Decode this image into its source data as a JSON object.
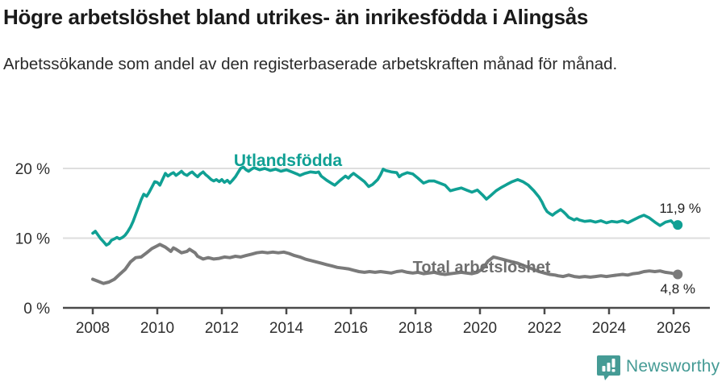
{
  "header": {
    "title": "Högre arbetslöshet bland utrikes- än inrikesfödda i Alingsås",
    "subtitle": "Arbetssökande som andel av den registerbaserade arbetskraften månad för månad."
  },
  "footer": {
    "brand": "Newsworthy",
    "brand_color": "#459b95",
    "icon": "bar-chart-speech-bubble-icon"
  },
  "chart_data": {
    "type": "line",
    "title": "Högre arbetslöshet bland utrikes- än inrikesfödda i Alingsås",
    "xlabel": "",
    "ylabel": "",
    "grid": "horizontal",
    "x_axis": {
      "ticks": [
        2008,
        2010,
        2012,
        2014,
        2016,
        2018,
        2020,
        2022,
        2024,
        2026
      ],
      "range": [
        2007.1,
        2027.1
      ]
    },
    "y_axis": {
      "ticks": [
        {
          "value": 0,
          "label": "0 %"
        },
        {
          "value": 10,
          "label": "10 %"
        },
        {
          "value": 20,
          "label": "20 %"
        }
      ],
      "range": [
        0,
        22
      ]
    },
    "series": [
      {
        "name": "Utlandsfödda",
        "color": "#10a094",
        "end_label": "11,9 %",
        "end_value": 11.9,
        "points": [
          [
            2008.0,
            10.7
          ],
          [
            2008.08,
            11.0
          ],
          [
            2008.17,
            10.4
          ],
          [
            2008.25,
            9.9
          ],
          [
            2008.33,
            9.5
          ],
          [
            2008.42,
            9.0
          ],
          [
            2008.5,
            9.2
          ],
          [
            2008.58,
            9.7
          ],
          [
            2008.67,
            9.9
          ],
          [
            2008.75,
            10.1
          ],
          [
            2008.83,
            9.9
          ],
          [
            2008.92,
            10.1
          ],
          [
            2009.0,
            10.4
          ],
          [
            2009.08,
            10.9
          ],
          [
            2009.17,
            11.6
          ],
          [
            2009.25,
            12.4
          ],
          [
            2009.33,
            13.4
          ],
          [
            2009.42,
            14.5
          ],
          [
            2009.5,
            15.5
          ],
          [
            2009.58,
            16.3
          ],
          [
            2009.67,
            16.0
          ],
          [
            2009.75,
            16.6
          ],
          [
            2009.83,
            17.3
          ],
          [
            2009.92,
            18.1
          ],
          [
            2010.0,
            18.0
          ],
          [
            2010.08,
            17.6
          ],
          [
            2010.17,
            18.5
          ],
          [
            2010.25,
            19.3
          ],
          [
            2010.33,
            18.9
          ],
          [
            2010.42,
            19.2
          ],
          [
            2010.5,
            19.4
          ],
          [
            2010.58,
            19.0
          ],
          [
            2010.67,
            19.3
          ],
          [
            2010.75,
            19.6
          ],
          [
            2010.83,
            19.2
          ],
          [
            2010.92,
            19.0
          ],
          [
            2011.0,
            19.3
          ],
          [
            2011.08,
            19.5
          ],
          [
            2011.17,
            19.1
          ],
          [
            2011.25,
            18.8
          ],
          [
            2011.33,
            19.2
          ],
          [
            2011.42,
            19.5
          ],
          [
            2011.5,
            19.1
          ],
          [
            2011.58,
            18.8
          ],
          [
            2011.67,
            18.4
          ],
          [
            2011.75,
            18.2
          ],
          [
            2011.83,
            18.4
          ],
          [
            2011.92,
            18.1
          ],
          [
            2012.0,
            18.4
          ],
          [
            2012.08,
            18.0
          ],
          [
            2012.17,
            18.3
          ],
          [
            2012.25,
            17.9
          ],
          [
            2012.33,
            18.3
          ],
          [
            2012.42,
            18.8
          ],
          [
            2012.5,
            19.4
          ],
          [
            2012.58,
            20.0
          ],
          [
            2012.67,
            20.2
          ],
          [
            2012.75,
            19.8
          ],
          [
            2012.83,
            19.6
          ],
          [
            2012.92,
            19.9
          ],
          [
            2013.0,
            20.1
          ],
          [
            2013.17,
            19.8
          ],
          [
            2013.33,
            20.0
          ],
          [
            2013.5,
            19.7
          ],
          [
            2013.67,
            19.9
          ],
          [
            2013.83,
            19.6
          ],
          [
            2014.0,
            19.8
          ],
          [
            2014.17,
            19.5
          ],
          [
            2014.33,
            19.2
          ],
          [
            2014.42,
            19.0
          ],
          [
            2014.58,
            19.3
          ],
          [
            2014.75,
            19.5
          ],
          [
            2014.92,
            19.4
          ],
          [
            2015.0,
            19.5
          ],
          [
            2015.08,
            18.9
          ],
          [
            2015.25,
            18.3
          ],
          [
            2015.42,
            17.8
          ],
          [
            2015.5,
            17.6
          ],
          [
            2015.67,
            18.3
          ],
          [
            2015.83,
            18.9
          ],
          [
            2015.92,
            18.6
          ],
          [
            2016.0,
            19.0
          ],
          [
            2016.08,
            19.3
          ],
          [
            2016.25,
            18.7
          ],
          [
            2016.42,
            18.1
          ],
          [
            2016.55,
            17.4
          ],
          [
            2016.67,
            17.7
          ],
          [
            2016.83,
            18.4
          ],
          [
            2016.92,
            19.1
          ],
          [
            2017.0,
            19.9
          ],
          [
            2017.08,
            19.7
          ],
          [
            2017.25,
            19.5
          ],
          [
            2017.42,
            19.4
          ],
          [
            2017.5,
            18.8
          ],
          [
            2017.58,
            19.1
          ],
          [
            2017.75,
            19.4
          ],
          [
            2017.92,
            19.2
          ],
          [
            2018.08,
            18.6
          ],
          [
            2018.25,
            17.9
          ],
          [
            2018.42,
            18.2
          ],
          [
            2018.58,
            18.2
          ],
          [
            2018.75,
            17.9
          ],
          [
            2018.92,
            17.6
          ],
          [
            2019.08,
            16.8
          ],
          [
            2019.25,
            17.0
          ],
          [
            2019.42,
            17.2
          ],
          [
            2019.58,
            16.9
          ],
          [
            2019.75,
            16.6
          ],
          [
            2019.92,
            16.9
          ],
          [
            2020.08,
            16.2
          ],
          [
            2020.2,
            15.6
          ],
          [
            2020.33,
            16.1
          ],
          [
            2020.5,
            16.8
          ],
          [
            2020.67,
            17.3
          ],
          [
            2020.83,
            17.7
          ],
          [
            2021.0,
            18.1
          ],
          [
            2021.17,
            18.4
          ],
          [
            2021.33,
            18.1
          ],
          [
            2021.5,
            17.6
          ],
          [
            2021.67,
            16.8
          ],
          [
            2021.83,
            15.9
          ],
          [
            2021.92,
            15.2
          ],
          [
            2022.0,
            14.4
          ],
          [
            2022.08,
            13.8
          ],
          [
            2022.17,
            13.5
          ],
          [
            2022.25,
            13.3
          ],
          [
            2022.33,
            13.6
          ],
          [
            2022.5,
            14.1
          ],
          [
            2022.58,
            13.8
          ],
          [
            2022.67,
            13.4
          ],
          [
            2022.75,
            13.0
          ],
          [
            2022.92,
            12.6
          ],
          [
            2023.0,
            12.8
          ],
          [
            2023.08,
            12.6
          ],
          [
            2023.25,
            12.4
          ],
          [
            2023.42,
            12.5
          ],
          [
            2023.58,
            12.3
          ],
          [
            2023.75,
            12.5
          ],
          [
            2023.92,
            12.2
          ],
          [
            2024.08,
            12.4
          ],
          [
            2024.25,
            12.3
          ],
          [
            2024.42,
            12.5
          ],
          [
            2024.58,
            12.2
          ],
          [
            2024.75,
            12.6
          ],
          [
            2024.92,
            13.0
          ],
          [
            2025.08,
            13.3
          ],
          [
            2025.25,
            12.9
          ],
          [
            2025.42,
            12.3
          ],
          [
            2025.58,
            11.8
          ],
          [
            2025.75,
            12.3
          ],
          [
            2025.92,
            12.5
          ],
          [
            2026.0,
            12.1
          ],
          [
            2026.13,
            11.9
          ]
        ]
      },
      {
        "name": "Total arbetslöshet",
        "color": "#7a7a7a",
        "end_label": "4,8 %",
        "end_value": 4.8,
        "points": [
          [
            2008.0,
            4.1
          ],
          [
            2008.17,
            3.8
          ],
          [
            2008.33,
            3.5
          ],
          [
            2008.5,
            3.7
          ],
          [
            2008.67,
            4.1
          ],
          [
            2008.83,
            4.8
          ],
          [
            2009.0,
            5.5
          ],
          [
            2009.17,
            6.6
          ],
          [
            2009.33,
            7.2
          ],
          [
            2009.5,
            7.3
          ],
          [
            2009.67,
            7.9
          ],
          [
            2009.83,
            8.5
          ],
          [
            2010.0,
            8.9
          ],
          [
            2010.08,
            9.1
          ],
          [
            2010.25,
            8.7
          ],
          [
            2010.42,
            8.1
          ],
          [
            2010.5,
            8.6
          ],
          [
            2010.58,
            8.4
          ],
          [
            2010.75,
            7.9
          ],
          [
            2010.92,
            8.1
          ],
          [
            2011.0,
            8.4
          ],
          [
            2011.17,
            7.9
          ],
          [
            2011.25,
            7.4
          ],
          [
            2011.42,
            7.0
          ],
          [
            2011.58,
            7.2
          ],
          [
            2011.75,
            7.0
          ],
          [
            2011.92,
            7.1
          ],
          [
            2012.08,
            7.3
          ],
          [
            2012.25,
            7.2
          ],
          [
            2012.42,
            7.4
          ],
          [
            2012.58,
            7.3
          ],
          [
            2012.75,
            7.5
          ],
          [
            2012.92,
            7.7
          ],
          [
            2013.08,
            7.9
          ],
          [
            2013.25,
            8.0
          ],
          [
            2013.42,
            7.9
          ],
          [
            2013.58,
            8.0
          ],
          [
            2013.75,
            7.9
          ],
          [
            2013.92,
            8.0
          ],
          [
            2014.08,
            7.8
          ],
          [
            2014.25,
            7.5
          ],
          [
            2014.42,
            7.3
          ],
          [
            2014.58,
            7.0
          ],
          [
            2014.75,
            6.8
          ],
          [
            2014.92,
            6.6
          ],
          [
            2015.08,
            6.4
          ],
          [
            2015.25,
            6.2
          ],
          [
            2015.42,
            6.0
          ],
          [
            2015.58,
            5.8
          ],
          [
            2015.75,
            5.7
          ],
          [
            2015.92,
            5.6
          ],
          [
            2016.08,
            5.4
          ],
          [
            2016.25,
            5.2
          ],
          [
            2016.42,
            5.1
          ],
          [
            2016.58,
            5.2
          ],
          [
            2016.75,
            5.1
          ],
          [
            2016.92,
            5.2
          ],
          [
            2017.08,
            5.1
          ],
          [
            2017.25,
            5.0
          ],
          [
            2017.42,
            5.2
          ],
          [
            2017.58,
            5.3
          ],
          [
            2017.75,
            5.1
          ],
          [
            2017.92,
            5.0
          ],
          [
            2018.08,
            5.1
          ],
          [
            2018.25,
            4.9
          ],
          [
            2018.42,
            5.0
          ],
          [
            2018.58,
            5.1
          ],
          [
            2018.75,
            4.9
          ],
          [
            2018.92,
            4.8
          ],
          [
            2019.08,
            4.9
          ],
          [
            2019.25,
            5.0
          ],
          [
            2019.42,
            5.1
          ],
          [
            2019.58,
            5.0
          ],
          [
            2019.75,
            4.9
          ],
          [
            2019.92,
            5.1
          ],
          [
            2020.08,
            5.6
          ],
          [
            2020.25,
            6.7
          ],
          [
            2020.42,
            7.3
          ],
          [
            2020.5,
            7.2
          ],
          [
            2020.67,
            7.0
          ],
          [
            2020.83,
            6.8
          ],
          [
            2021.0,
            6.6
          ],
          [
            2021.17,
            6.4
          ],
          [
            2021.33,
            6.1
          ],
          [
            2021.5,
            5.8
          ],
          [
            2021.67,
            5.5
          ],
          [
            2021.83,
            5.2
          ],
          [
            2022.0,
            5.0
          ],
          [
            2022.17,
            4.8
          ],
          [
            2022.33,
            4.7
          ],
          [
            2022.42,
            4.6
          ],
          [
            2022.58,
            4.5
          ],
          [
            2022.75,
            4.7
          ],
          [
            2022.92,
            4.5
          ],
          [
            2023.08,
            4.4
          ],
          [
            2023.25,
            4.5
          ],
          [
            2023.42,
            4.4
          ],
          [
            2023.58,
            4.5
          ],
          [
            2023.75,
            4.6
          ],
          [
            2023.92,
            4.5
          ],
          [
            2024.08,
            4.6
          ],
          [
            2024.25,
            4.7
          ],
          [
            2024.42,
            4.8
          ],
          [
            2024.58,
            4.7
          ],
          [
            2024.75,
            4.9
          ],
          [
            2024.92,
            5.0
          ],
          [
            2025.08,
            5.2
          ],
          [
            2025.25,
            5.3
          ],
          [
            2025.42,
            5.2
          ],
          [
            2025.58,
            5.3
          ],
          [
            2025.75,
            5.1
          ],
          [
            2025.92,
            5.0
          ],
          [
            2026.0,
            4.9
          ],
          [
            2026.13,
            4.8
          ]
        ]
      }
    ]
  }
}
